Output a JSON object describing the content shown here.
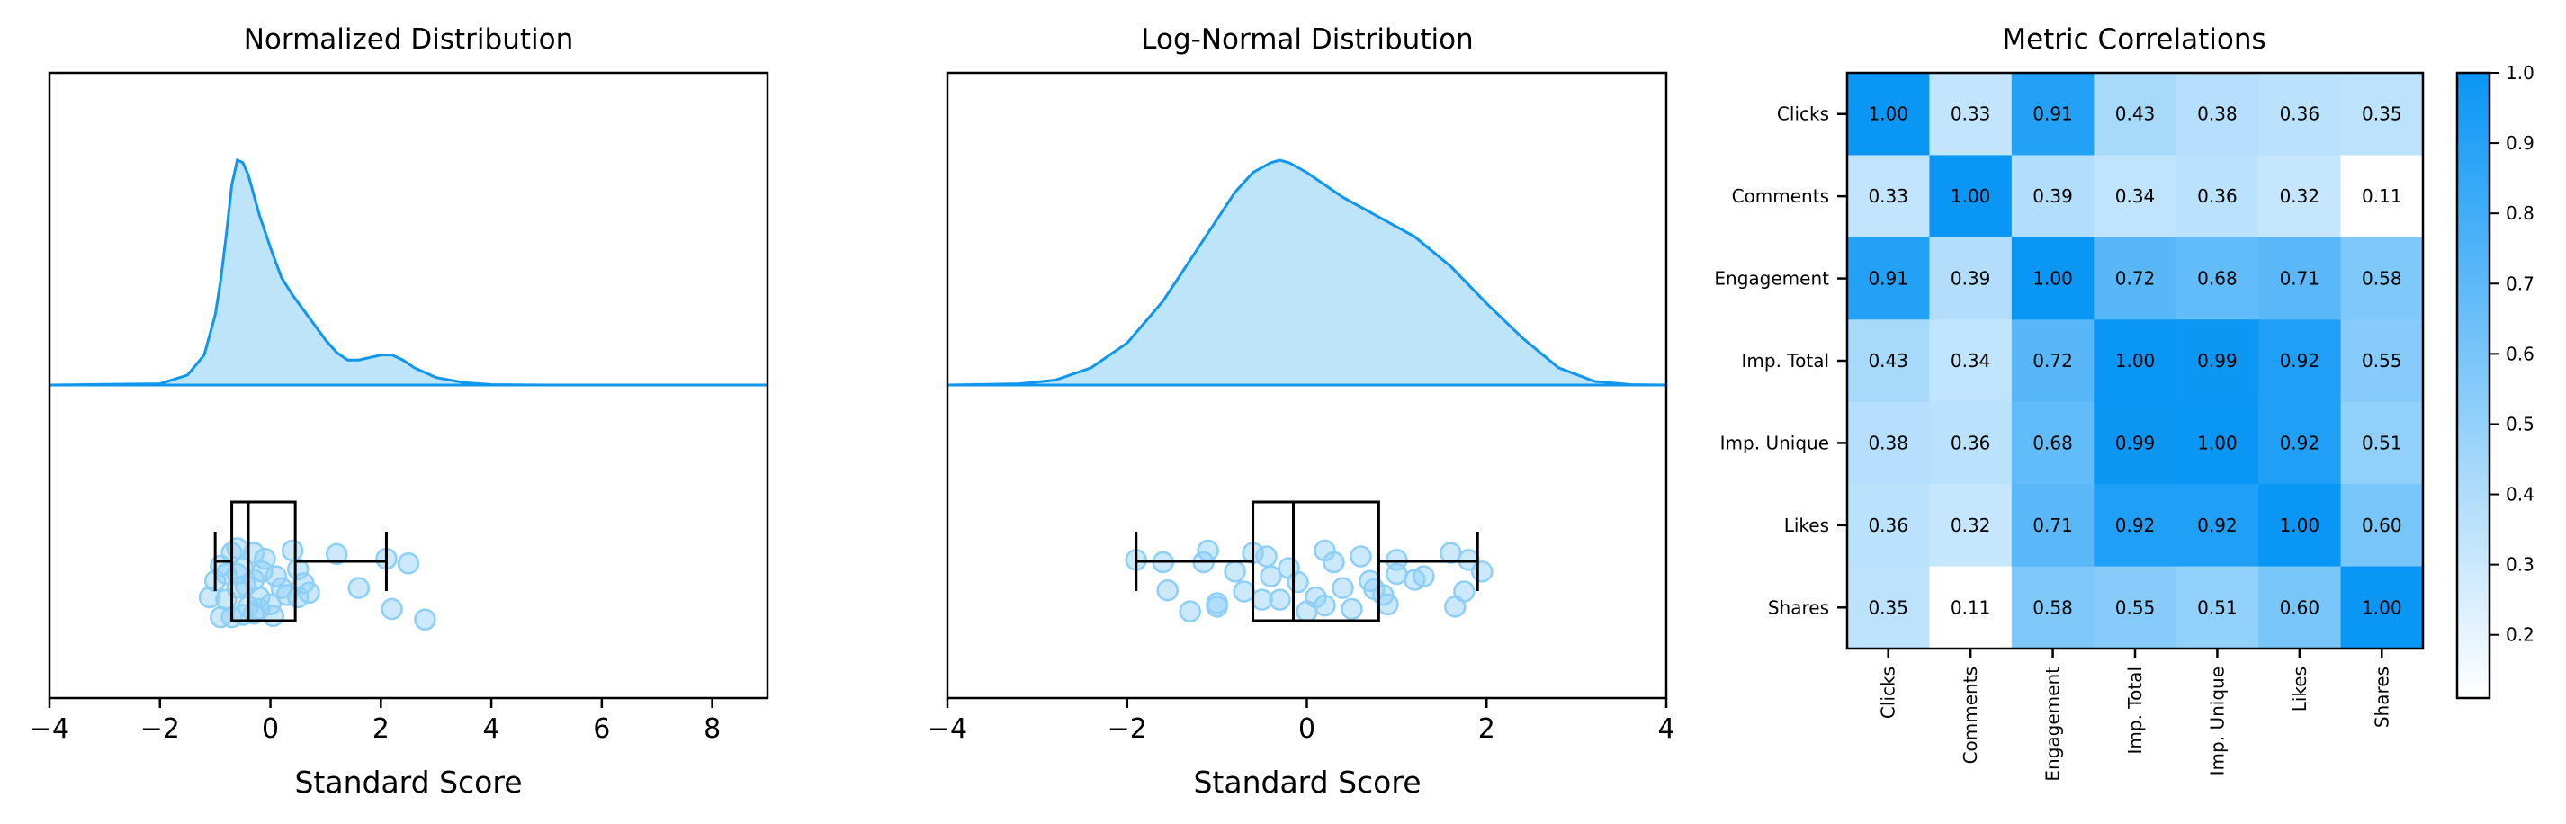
{
  "colors": {
    "accent": "#1196EE",
    "fill": "#BEE4FA",
    "box": "#000000",
    "point": "#8ECFF7"
  },
  "chart_data": [
    {
      "type": "area",
      "title": "Normalized Distribution",
      "xlabel": "Standard Score",
      "xlim": [
        -4,
        9
      ],
      "xticks": [
        -4,
        -2,
        0,
        2,
        4,
        6,
        8
      ],
      "xtick_labels": [
        "−4",
        "−2",
        "0",
        "2",
        "4",
        "6",
        "8"
      ],
      "density": {
        "x": [
          -4,
          -2,
          -1.5,
          -1.2,
          -1,
          -0.9,
          -0.8,
          -0.7,
          -0.6,
          -0.5,
          -0.4,
          -0.3,
          -0.2,
          0,
          0.2,
          0.4,
          0.6,
          0.8,
          1.0,
          1.2,
          1.4,
          1.6,
          1.8,
          2.0,
          2.2,
          2.4,
          2.6,
          3.0,
          3.5,
          4,
          5,
          9
        ],
        "y": [
          0,
          0.005,
          0.04,
          0.12,
          0.28,
          0.42,
          0.6,
          0.8,
          0.9,
          0.89,
          0.84,
          0.76,
          0.68,
          0.55,
          0.43,
          0.36,
          0.3,
          0.24,
          0.18,
          0.13,
          0.1,
          0.1,
          0.11,
          0.12,
          0.12,
          0.1,
          0.07,
          0.03,
          0.01,
          0.002,
          0,
          0
        ]
      },
      "box": {
        "whislo": -1.0,
        "q1": -0.7,
        "med": -0.4,
        "q3": 0.45,
        "whishi": 2.1
      },
      "points": [
        [
          -0.6,
          0.62
        ],
        [
          -0.3,
          0.58
        ],
        [
          -0.7,
          0.58
        ],
        [
          0.4,
          0.6
        ],
        [
          1.2,
          0.57
        ],
        [
          2.1,
          0.53
        ],
        [
          2.5,
          0.49
        ],
        [
          -0.1,
          0.53
        ],
        [
          -0.5,
          0.45
        ],
        [
          -0.9,
          0.47
        ],
        [
          -0.6,
          0.4
        ],
        [
          -0.3,
          0.35
        ],
        [
          0.1,
          0.38
        ],
        [
          0.6,
          0.32
        ],
        [
          1.6,
          0.28
        ],
        [
          0.3,
          0.22
        ],
        [
          -0.2,
          0.2
        ],
        [
          -1.1,
          0.2
        ],
        [
          -0.8,
          0.18
        ],
        [
          -0.4,
          0.12
        ],
        [
          -0.2,
          0.1
        ],
        [
          0.0,
          0.14
        ],
        [
          0.5,
          0.2
        ],
        [
          2.2,
          0.1
        ],
        [
          2.8,
          0.01
        ],
        [
          -0.9,
          0.03
        ],
        [
          -0.7,
          0.03
        ],
        [
          -0.5,
          0.05
        ],
        [
          -0.3,
          0.06
        ],
        [
          0.7,
          0.24
        ],
        [
          0.5,
          0.44
        ],
        [
          -0.6,
          0.28
        ],
        [
          -1.0,
          0.34
        ],
        [
          -0.45,
          0.3
        ],
        [
          0.2,
          0.28
        ],
        [
          -0.15,
          0.42
        ],
        [
          -0.8,
          0.4
        ],
        [
          0.05,
          0.04
        ]
      ]
    },
    {
      "type": "area",
      "title": "Log-Normal Distribution",
      "xlabel": "Standard Score",
      "xlim": [
        -4,
        4
      ],
      "xticks": [
        -4,
        -2,
        0,
        2,
        4
      ],
      "xtick_labels": [
        "−4",
        "−2",
        "0",
        "2",
        "4"
      ],
      "density": {
        "x": [
          -4,
          -3.2,
          -2.8,
          -2.4,
          -2.0,
          -1.6,
          -1.2,
          -0.8,
          -0.6,
          -0.4,
          -0.3,
          -0.2,
          0,
          0.4,
          0.8,
          1.2,
          1.6,
          2.0,
          2.4,
          2.8,
          3.2,
          3.6,
          4
        ],
        "y": [
          0,
          0.005,
          0.02,
          0.07,
          0.17,
          0.34,
          0.56,
          0.78,
          0.86,
          0.9,
          0.91,
          0.9,
          0.86,
          0.76,
          0.68,
          0.6,
          0.48,
          0.33,
          0.19,
          0.07,
          0.015,
          0.002,
          0
        ]
      },
      "box": {
        "whislo": -1.9,
        "q1": -0.6,
        "med": -0.15,
        "q3": 0.8,
        "whishi": 1.9
      },
      "points": [
        [
          -1.9,
          0.52
        ],
        [
          -1.6,
          0.5
        ],
        [
          -1.1,
          0.6
        ],
        [
          -1.15,
          0.5
        ],
        [
          -0.6,
          0.58
        ],
        [
          -0.45,
          0.55
        ],
        [
          -0.2,
          0.45
        ],
        [
          0.2,
          0.6
        ],
        [
          0.6,
          0.55
        ],
        [
          1.0,
          0.52
        ],
        [
          1.6,
          0.58
        ],
        [
          1.8,
          0.52
        ],
        [
          1.95,
          0.42
        ],
        [
          1.3,
          0.38
        ],
        [
          1.0,
          0.4
        ],
        [
          0.7,
          0.34
        ],
        [
          0.4,
          0.28
        ],
        [
          0.1,
          0.2
        ],
        [
          -0.3,
          0.18
        ],
        [
          -0.7,
          0.25
        ],
        [
          -1.0,
          0.15
        ],
        [
          -1.3,
          0.08
        ],
        [
          -1.55,
          0.26
        ],
        [
          -1.0,
          0.12
        ],
        [
          0.2,
          0.13
        ],
        [
          0.5,
          0.1
        ],
        [
          0.85,
          0.22
        ],
        [
          0.9,
          0.14
        ],
        [
          1.65,
          0.12
        ],
        [
          1.75,
          0.25
        ],
        [
          -0.4,
          0.38
        ],
        [
          -0.1,
          0.33
        ],
        [
          0.3,
          0.5
        ],
        [
          -0.8,
          0.42
        ],
        [
          0.75,
          0.27
        ],
        [
          1.2,
          0.35
        ],
        [
          -0.5,
          0.18
        ],
        [
          0.0,
          0.08
        ]
      ]
    },
    {
      "type": "heatmap",
      "title": "Metric Correlations",
      "labels": [
        "Clicks",
        "Comments",
        "Engagement",
        "Imp. Total",
        "Imp. Unique",
        "Likes",
        "Shares"
      ],
      "values": [
        [
          1.0,
          0.33,
          0.91,
          0.43,
          0.38,
          0.36,
          0.35
        ],
        [
          0.33,
          1.0,
          0.39,
          0.34,
          0.36,
          0.32,
          0.11
        ],
        [
          0.91,
          0.39,
          1.0,
          0.72,
          0.68,
          0.71,
          0.58
        ],
        [
          0.43,
          0.34,
          0.72,
          1.0,
          0.99,
          0.92,
          0.55
        ],
        [
          0.38,
          0.36,
          0.68,
          0.99,
          1.0,
          0.92,
          0.51
        ],
        [
          0.36,
          0.32,
          0.71,
          0.92,
          0.92,
          1.0,
          0.6
        ],
        [
          0.35,
          0.11,
          0.58,
          0.55,
          0.51,
          0.6,
          1.0
        ]
      ],
      "cell_labels": [
        [
          "1.00",
          "0.33",
          "0.91",
          "0.43",
          "0.38",
          "0.36",
          "0.35"
        ],
        [
          "0.33",
          "1.00",
          "0.39",
          "0.34",
          "0.36",
          "0.32",
          "0.11"
        ],
        [
          "0.91",
          "0.39",
          "1.00",
          "0.72",
          "0.68",
          "0.71",
          "0.58"
        ],
        [
          "0.43",
          "0.34",
          "0.72",
          "1.00",
          "0.99",
          "0.92",
          "0.55"
        ],
        [
          "0.38",
          "0.36",
          "0.68",
          "0.99",
          "1.00",
          "0.92",
          "0.51"
        ],
        [
          "0.36",
          "0.32",
          "0.71",
          "0.92",
          "0.92",
          "1.00",
          "0.60"
        ],
        [
          "0.35",
          "0.11",
          "0.58",
          "0.55",
          "0.51",
          "0.60",
          "1.00"
        ]
      ],
      "colorbar": {
        "range": [
          0.11,
          1.0
        ],
        "ticks": [
          0.2,
          0.3,
          0.4,
          0.5,
          0.6,
          0.7,
          0.8,
          0.9,
          1.0
        ],
        "tick_labels": [
          "0.2",
          "0.3",
          "0.4",
          "0.5",
          "0.6",
          "0.7",
          "0.8",
          "0.9",
          "1.0"
        ],
        "colors": [
          "#FFFFFF",
          "#0A96F5"
        ]
      }
    }
  ]
}
